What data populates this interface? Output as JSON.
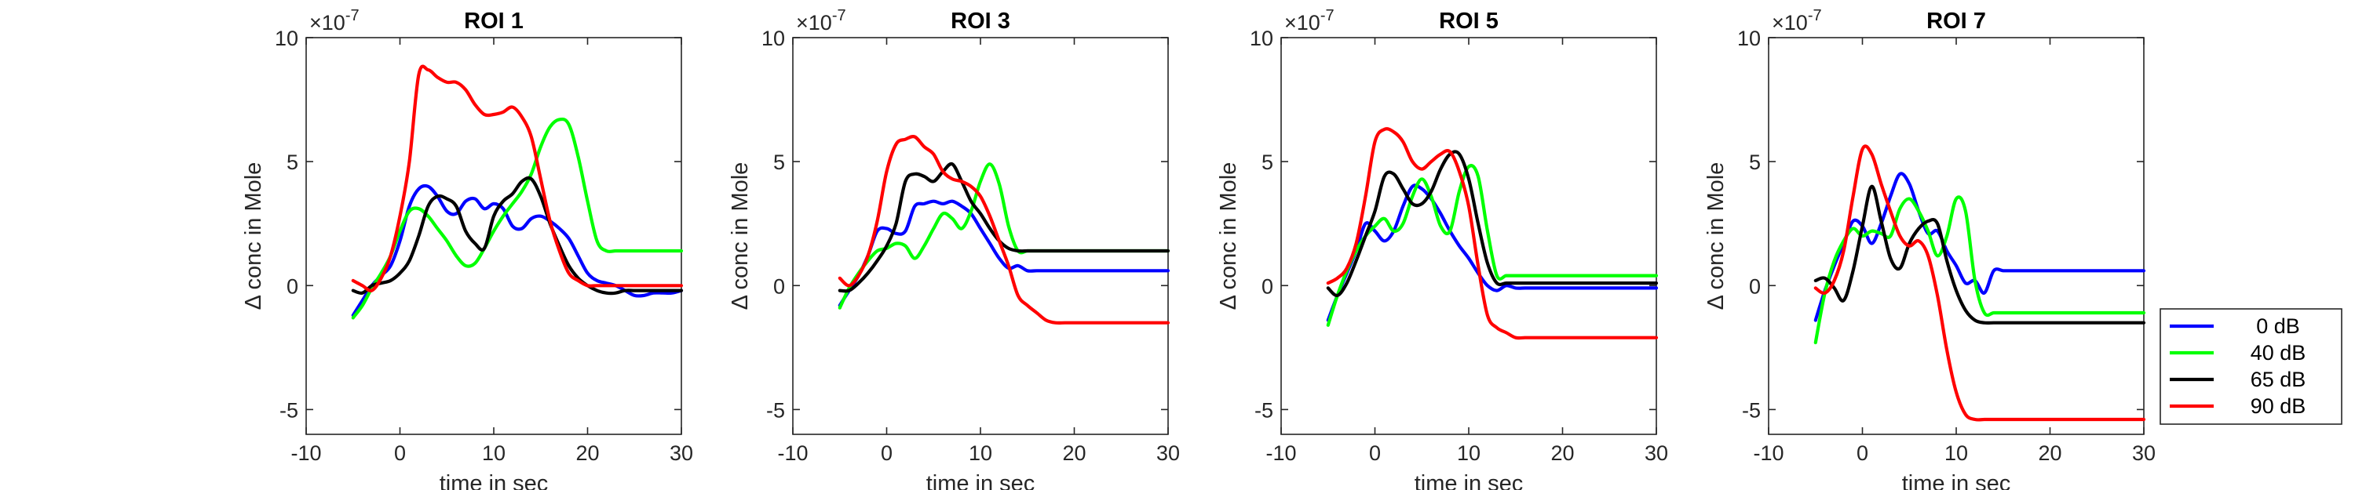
{
  "colors": {
    "0 dB": "#0000ff",
    "40 dB": "#00ff00",
    "65 dB": "#000000",
    "90 dB": "#ff0000"
  },
  "legend": {
    "placement": "right",
    "entries": [
      "0 dB",
      "40 dB",
      "65 dB",
      "90 dB"
    ]
  },
  "chart_data": [
    {
      "type": "line",
      "title": "ROI 1",
      "xlabel": "time in sec",
      "ylabel": "Δ conc in Mole",
      "exponent_label": "×10^{-7}",
      "xlim": [
        -10,
        30
      ],
      "ylim": [
        -6,
        10
      ],
      "xticks": [
        -10,
        0,
        10,
        20,
        30
      ],
      "yticks": [
        -5,
        0,
        5,
        10
      ],
      "x": [
        -5,
        -4,
        -3,
        -2,
        -1,
        0,
        1,
        2,
        3,
        4,
        5,
        6,
        7,
        8,
        9,
        10,
        11,
        12,
        13,
        14,
        15,
        16,
        17,
        18,
        19,
        20,
        21,
        22,
        23,
        24,
        25,
        26,
        27,
        28,
        29,
        30
      ],
      "series": [
        {
          "name": "0 dB",
          "values": [
            -1.2,
            -0.6,
            0.0,
            0.4,
            0.8,
            1.8,
            3.2,
            3.9,
            4.0,
            3.6,
            3.0,
            2.9,
            3.4,
            3.5,
            3.1,
            3.3,
            3.1,
            2.4,
            2.3,
            2.7,
            2.8,
            2.6,
            2.3,
            1.9,
            1.2,
            0.5,
            0.2,
            0.1,
            0.0,
            -0.2,
            -0.4,
            -0.4,
            -0.3,
            -0.3,
            -0.3,
            -0.2
          ]
        },
        {
          "name": "40 dB",
          "values": [
            -1.3,
            -0.8,
            -0.1,
            0.5,
            1.2,
            2.2,
            3.0,
            3.1,
            2.8,
            2.3,
            1.8,
            1.2,
            0.8,
            0.9,
            1.5,
            2.2,
            2.8,
            3.3,
            3.8,
            4.5,
            5.6,
            6.4,
            6.7,
            6.5,
            5.2,
            3.4,
            1.8,
            1.4,
            1.4,
            1.4,
            1.4,
            1.4,
            1.4,
            1.4,
            1.4,
            1.4
          ]
        },
        {
          "name": "65 dB",
          "values": [
            -0.2,
            -0.3,
            0.0,
            0.1,
            0.2,
            0.5,
            1.0,
            2.0,
            3.2,
            3.6,
            3.5,
            3.2,
            2.2,
            1.7,
            1.5,
            2.8,
            3.4,
            3.7,
            4.2,
            4.3,
            3.6,
            2.5,
            1.6,
            0.8,
            0.3,
            0.0,
            -0.2,
            -0.3,
            -0.3,
            -0.2,
            -0.2,
            -0.2,
            -0.2,
            -0.2,
            -0.2,
            -0.2
          ]
        },
        {
          "name": "90 dB",
          "values": [
            0.2,
            0.0,
            -0.2,
            0.3,
            1.2,
            2.8,
            5.0,
            8.5,
            8.7,
            8.4,
            8.2,
            8.2,
            7.9,
            7.3,
            6.9,
            6.9,
            7.0,
            7.2,
            6.8,
            6.0,
            4.3,
            2.6,
            1.4,
            0.5,
            0.2,
            0.0,
            0.0,
            0.0,
            0.0,
            0.0,
            0.0,
            0.0,
            0.0,
            0.0,
            0.0,
            0.0
          ]
        }
      ]
    },
    {
      "type": "line",
      "title": "ROI 3",
      "xlabel": "time in sec",
      "ylabel": "Δ conc in Mole",
      "exponent_label": "×10^{-7}",
      "xlim": [
        -10,
        30
      ],
      "ylim": [
        -6,
        10
      ],
      "xticks": [
        -10,
        0,
        10,
        20,
        30
      ],
      "yticks": [
        -5,
        0,
        5,
        10
      ],
      "x": [
        -5,
        -4,
        -3,
        -2,
        -1,
        0,
        1,
        2,
        3,
        4,
        5,
        6,
        7,
        8,
        9,
        10,
        11,
        12,
        13,
        14,
        15,
        16,
        17,
        18,
        19,
        20,
        21,
        22,
        23,
        24,
        25,
        26,
        27,
        28,
        29,
        30
      ],
      "series": [
        {
          "name": "0 dB",
          "values": [
            -0.8,
            -0.2,
            0.4,
            1.2,
            2.2,
            2.3,
            2.1,
            2.2,
            3.2,
            3.3,
            3.4,
            3.3,
            3.4,
            3.2,
            2.9,
            2.3,
            1.7,
            1.1,
            0.7,
            0.8,
            0.6,
            0.6,
            0.6,
            0.6,
            0.6,
            0.6,
            0.6,
            0.6,
            0.6,
            0.6,
            0.6,
            0.6,
            0.6,
            0.6,
            0.6,
            0.6
          ]
        },
        {
          "name": "40 dB",
          "values": [
            -0.9,
            -0.1,
            0.5,
            1.0,
            1.4,
            1.5,
            1.7,
            1.6,
            1.1,
            1.6,
            2.3,
            2.9,
            2.7,
            2.3,
            3.0,
            4.2,
            4.9,
            4.1,
            2.4,
            1.4,
            1.4,
            1.4,
            1.4,
            1.4,
            1.4,
            1.4,
            1.4,
            1.4,
            1.4,
            1.4,
            1.4,
            1.4,
            1.4,
            1.4,
            1.4,
            1.4
          ]
        },
        {
          "name": "65 dB",
          "values": [
            -0.2,
            -0.2,
            0.1,
            0.5,
            1.0,
            1.6,
            2.5,
            4.2,
            4.5,
            4.4,
            4.2,
            4.6,
            4.9,
            4.2,
            3.4,
            2.9,
            2.3,
            1.8,
            1.5,
            1.4,
            1.4,
            1.4,
            1.4,
            1.4,
            1.4,
            1.4,
            1.4,
            1.4,
            1.4,
            1.4,
            1.4,
            1.4,
            1.4,
            1.4,
            1.4,
            1.4
          ]
        },
        {
          "name": "90 dB",
          "values": [
            0.3,
            0.0,
            0.4,
            1.2,
            2.6,
            4.6,
            5.7,
            5.9,
            6.0,
            5.6,
            5.3,
            4.6,
            4.3,
            4.2,
            4.0,
            3.6,
            2.8,
            1.8,
            0.8,
            -0.4,
            -0.8,
            -1.1,
            -1.4,
            -1.5,
            -1.5,
            -1.5,
            -1.5,
            -1.5,
            -1.5,
            -1.5,
            -1.5,
            -1.5,
            -1.5,
            -1.5,
            -1.5,
            -1.5
          ]
        }
      ]
    },
    {
      "type": "line",
      "title": "ROI 5",
      "xlabel": "time in sec",
      "ylabel": "Δ conc in Mole",
      "exponent_label": "×10^{-7}",
      "xlim": [
        -10,
        30
      ],
      "ylim": [
        -6,
        10
      ],
      "xticks": [
        -10,
        0,
        10,
        20,
        30
      ],
      "yticks": [
        -5,
        0,
        5,
        10
      ],
      "x": [
        -5,
        -4,
        -3,
        -2,
        -1,
        0,
        1,
        2,
        3,
        4,
        5,
        6,
        7,
        8,
        9,
        10,
        11,
        12,
        13,
        14,
        15,
        16,
        17,
        18,
        19,
        20,
        21,
        22,
        23,
        24,
        25,
        26,
        27,
        28,
        29,
        30
      ],
      "series": [
        {
          "name": "0 dB",
          "values": [
            -1.4,
            -0.4,
            0.5,
            1.4,
            2.5,
            2.2,
            1.8,
            2.2,
            3.2,
            4.0,
            3.9,
            3.5,
            2.9,
            2.2,
            1.6,
            1.1,
            0.5,
            0.0,
            -0.2,
            0.0,
            -0.1,
            -0.1,
            -0.1,
            -0.1,
            -0.1,
            -0.1,
            -0.1,
            -0.1,
            -0.1,
            -0.1,
            -0.1,
            -0.1,
            -0.1,
            -0.1,
            -0.1,
            -0.1
          ]
        },
        {
          "name": "40 dB",
          "values": [
            -1.6,
            -0.4,
            0.6,
            1.4,
            2.0,
            2.4,
            2.7,
            2.2,
            2.5,
            3.6,
            4.3,
            3.6,
            2.4,
            2.2,
            3.8,
            4.8,
            4.4,
            2.2,
            0.4,
            0.4,
            0.4,
            0.4,
            0.4,
            0.4,
            0.4,
            0.4,
            0.4,
            0.4,
            0.4,
            0.4,
            0.4,
            0.4,
            0.4,
            0.4,
            0.4,
            0.4
          ]
        },
        {
          "name": "65 dB",
          "values": [
            -0.1,
            -0.4,
            0.1,
            1.0,
            2.0,
            3.0,
            4.4,
            4.5,
            3.9,
            3.3,
            3.3,
            3.8,
            4.7,
            5.3,
            5.3,
            4.3,
            2.5,
            0.9,
            0.1,
            0.1,
            0.1,
            0.1,
            0.1,
            0.1,
            0.1,
            0.1,
            0.1,
            0.1,
            0.1,
            0.1,
            0.1,
            0.1,
            0.1,
            0.1,
            0.1,
            0.1
          ]
        },
        {
          "name": "90 dB",
          "values": [
            0.1,
            0.3,
            0.7,
            1.7,
            3.6,
            5.8,
            6.3,
            6.2,
            5.8,
            5.0,
            4.7,
            5.0,
            5.3,
            5.4,
            4.6,
            3.2,
            0.8,
            -1.2,
            -1.7,
            -1.9,
            -2.1,
            -2.1,
            -2.1,
            -2.1,
            -2.1,
            -2.1,
            -2.1,
            -2.1,
            -2.1,
            -2.1,
            -2.1,
            -2.1,
            -2.1,
            -2.1,
            -2.1,
            -2.1
          ]
        }
      ]
    },
    {
      "type": "line",
      "title": "ROI 7",
      "xlabel": "time in sec",
      "ylabel": "Δ conc in Mole",
      "exponent_label": "×10^{-7}",
      "xlim": [
        -10,
        30
      ],
      "ylim": [
        -6,
        10
      ],
      "xticks": [
        -10,
        0,
        10,
        20,
        30
      ],
      "yticks": [
        -5,
        0,
        5,
        10
      ],
      "x": [
        -5,
        -4,
        -3,
        -2,
        -1,
        0,
        1,
        2,
        3,
        4,
        5,
        6,
        7,
        8,
        9,
        10,
        11,
        12,
        13,
        14,
        15,
        16,
        17,
        18,
        19,
        20,
        21,
        22,
        23,
        24,
        25,
        26,
        27,
        28,
        29,
        30
      ],
      "series": [
        {
          "name": "0 dB",
          "values": [
            -1.4,
            -0.2,
            0.8,
            1.7,
            2.6,
            2.4,
            1.7,
            2.5,
            3.6,
            4.5,
            4.1,
            3.0,
            2.1,
            2.2,
            1.4,
            0.8,
            0.1,
            0.2,
            -0.3,
            0.6,
            0.6,
            0.6,
            0.6,
            0.6,
            0.6,
            0.6,
            0.6,
            0.6,
            0.6,
            0.6,
            0.6,
            0.6,
            0.6,
            0.6,
            0.6,
            0.6
          ]
        },
        {
          "name": "40 dB",
          "values": [
            -2.3,
            -0.3,
            1.0,
            1.8,
            2.3,
            2.0,
            2.2,
            2.1,
            2.0,
            3.1,
            3.5,
            3.0,
            2.2,
            1.2,
            2.0,
            3.5,
            3.0,
            0.2,
            -1.1,
            -1.1,
            -1.1,
            -1.1,
            -1.1,
            -1.1,
            -1.1,
            -1.1,
            -1.1,
            -1.1,
            -1.1,
            -1.1,
            -1.1,
            -1.1,
            -1.1,
            -1.1,
            -1.1,
            -1.1
          ]
        },
        {
          "name": "65 dB",
          "values": [
            0.2,
            0.3,
            -0.1,
            -0.6,
            0.6,
            2.4,
            4.0,
            2.6,
            1.1,
            0.7,
            1.7,
            2.3,
            2.6,
            2.5,
            1.0,
            -0.2,
            -1.0,
            -1.4,
            -1.5,
            -1.5,
            -1.5,
            -1.5,
            -1.5,
            -1.5,
            -1.5,
            -1.5,
            -1.5,
            -1.5,
            -1.5,
            -1.5,
            -1.5,
            -1.5,
            -1.5,
            -1.5,
            -1.5,
            -1.5
          ]
        },
        {
          "name": "90 dB",
          "values": [
            -0.1,
            -0.3,
            0.2,
            1.4,
            3.6,
            5.5,
            5.3,
            4.1,
            3.0,
            2.0,
            1.6,
            1.8,
            1.2,
            -0.4,
            -2.6,
            -4.3,
            -5.2,
            -5.4,
            -5.4,
            -5.4,
            -5.4,
            -5.4,
            -5.4,
            -5.4,
            -5.4,
            -5.4,
            -5.4,
            -5.4,
            -5.4,
            -5.4,
            -5.4,
            -5.4,
            -5.4,
            -5.4,
            -5.4,
            -5.4
          ]
        }
      ]
    }
  ]
}
